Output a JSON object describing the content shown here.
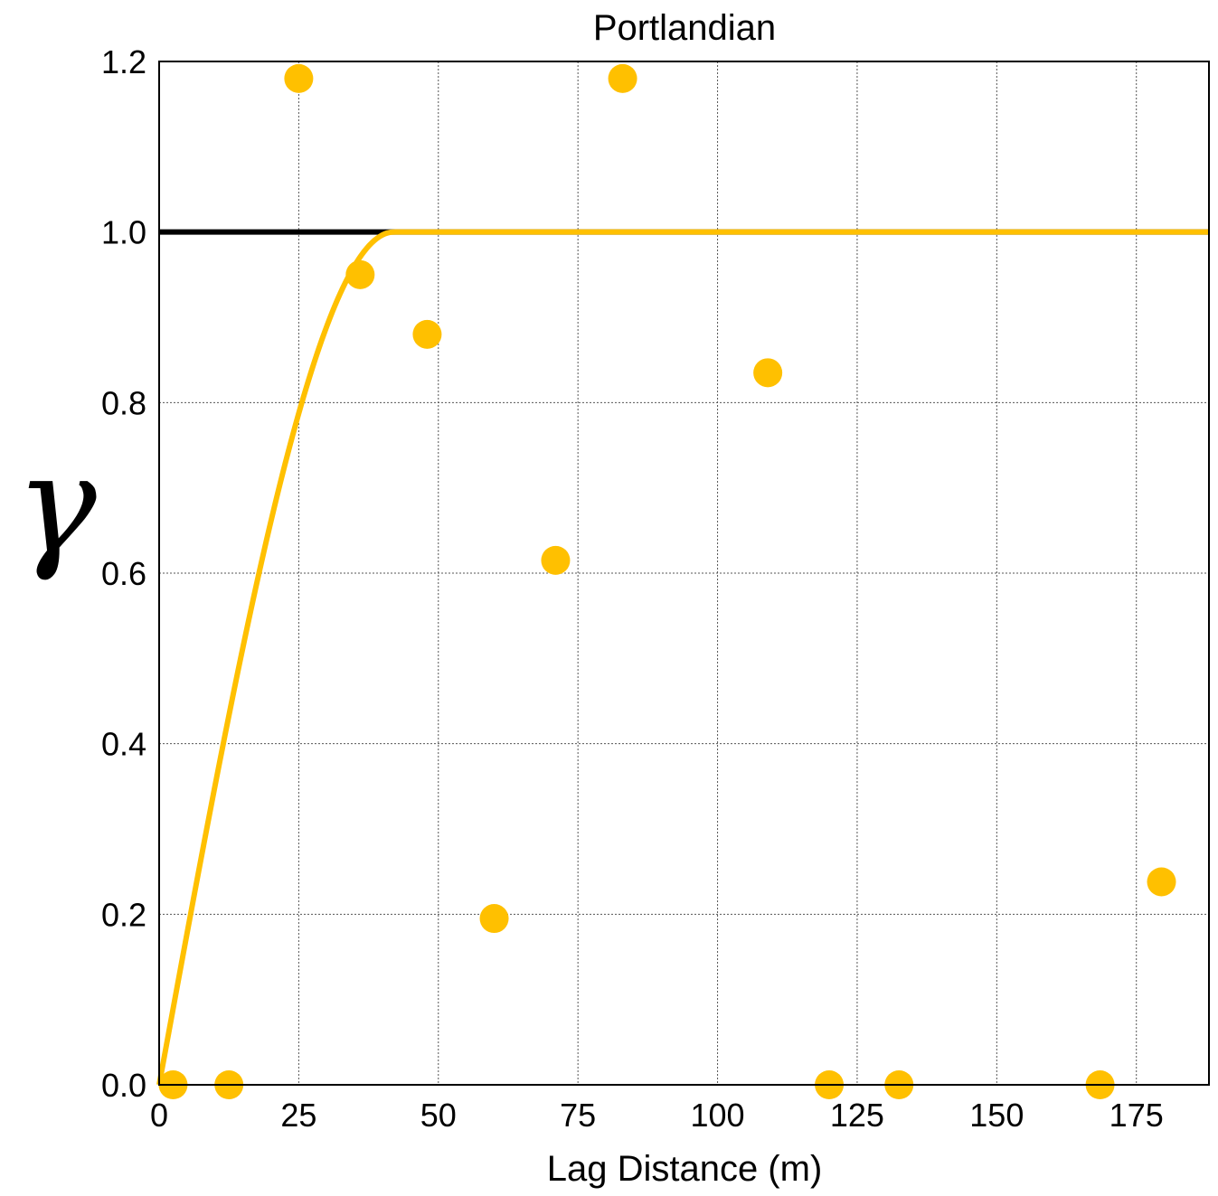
{
  "chart_data": {
    "type": "scatter",
    "title": "Portlandian",
    "xlabel": "Lag Distance (m)",
    "ylabel": "γ",
    "xlim": [
      0,
      188
    ],
    "ylim": [
      0,
      1.2
    ],
    "x_ticks": [
      "0",
      "25",
      "50",
      "75",
      "100",
      "125",
      "150",
      "175"
    ],
    "y_ticks": [
      "0.0",
      "0.2",
      "0.4",
      "0.6",
      "0.8",
      "1.0",
      "1.2"
    ],
    "grid": true,
    "series": [
      {
        "kind": "points",
        "color": "#FFC000",
        "points": [
          {
            "x": 2.5,
            "y": 0.0
          },
          {
            "x": 12.5,
            "y": 0.0
          },
          {
            "x": 25,
            "y": 1.18
          },
          {
            "x": 36,
            "y": 0.95
          },
          {
            "x": 48,
            "y": 0.88
          },
          {
            "x": 60,
            "y": 0.195
          },
          {
            "x": 71,
            "y": 0.615
          },
          {
            "x": 83,
            "y": 1.18
          },
          {
            "x": 109,
            "y": 0.835
          },
          {
            "x": 120,
            "y": 0.0
          },
          {
            "x": 132.5,
            "y": 0.0
          },
          {
            "x": 168.5,
            "y": 0.0
          },
          {
            "x": 179.5,
            "y": 0.238
          }
        ]
      },
      {
        "kind": "model-curve",
        "model": "spherical",
        "sill": 1.0,
        "range": 42,
        "nugget": 0.0,
        "color": "#FFC000"
      },
      {
        "kind": "reference-line",
        "y": 1.0,
        "color": "#000000"
      }
    ]
  }
}
